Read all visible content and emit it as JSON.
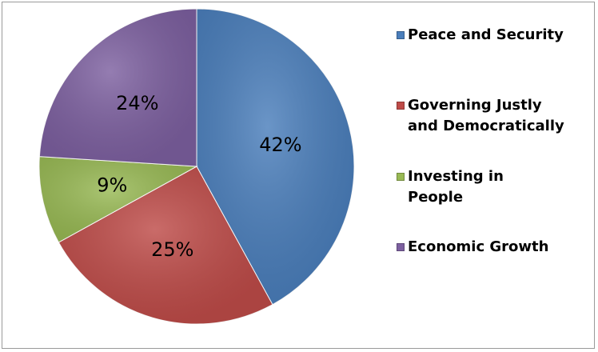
{
  "chart_data": {
    "type": "pie",
    "title": "",
    "slices": [
      {
        "label": "Peace and Security",
        "value": 42,
        "value_label": "42%",
        "color": "#4a7ebb"
      },
      {
        "label": "Governing Justly and Democratically",
        "value": 25,
        "value_label": "25%",
        "color": "#be4b48"
      },
      {
        "label": "Investing in People",
        "value": 9,
        "value_label": "9%",
        "color": "#98b954"
      },
      {
        "label": "Economic Growth",
        "value": 24,
        "value_label": "24%",
        "color": "#7d60a0"
      }
    ],
    "legend_placement": "right"
  }
}
